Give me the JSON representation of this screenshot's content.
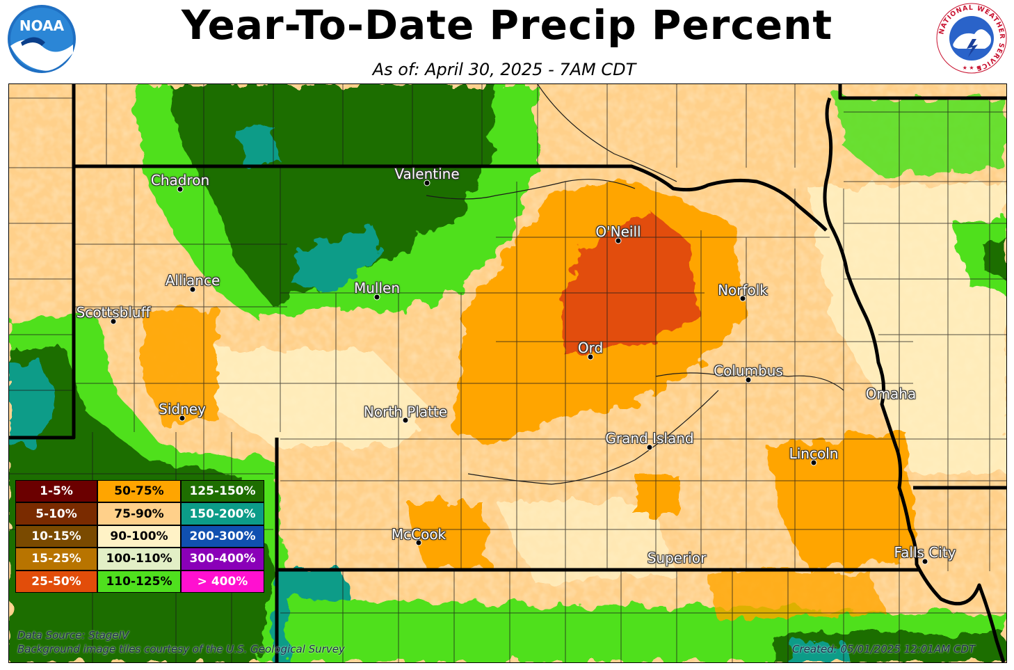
{
  "header": {
    "title": "Year-To-Date Precip Percent",
    "subtitle": "As of: April 30, 2025 - 7AM CDT",
    "noaa_logo_text": "NOAA",
    "nws_logo_text": "NATIONAL WEATHER SERVICE"
  },
  "cities": [
    {
      "name": "Chadron",
      "key": "chadron"
    },
    {
      "name": "Valentine",
      "key": "valentine"
    },
    {
      "name": "O'Neill",
      "key": "oneill"
    },
    {
      "name": "Alliance",
      "key": "alliance"
    },
    {
      "name": "Mullen",
      "key": "mullen"
    },
    {
      "name": "Norfolk",
      "key": "norfolk"
    },
    {
      "name": "Scottsbluff",
      "key": "scottsbluff"
    },
    {
      "name": "Ord",
      "key": "ord"
    },
    {
      "name": "Columbus",
      "key": "columbus"
    },
    {
      "name": "Omaha",
      "key": "omaha"
    },
    {
      "name": "Sidney",
      "key": "sidney"
    },
    {
      "name": "North Platte",
      "key": "north-platte"
    },
    {
      "name": "Grand Island",
      "key": "grand-island"
    },
    {
      "name": "Lincoln",
      "key": "lincoln"
    },
    {
      "name": "McCook",
      "key": "mccook"
    },
    {
      "name": "Superior",
      "key": "superior"
    },
    {
      "name": "Falls City",
      "key": "falls-city"
    }
  ],
  "legend": [
    {
      "label": "1-5%",
      "color": "#6b0000",
      "text_color": "#ffffff"
    },
    {
      "label": "50-75%",
      "color": "#ffa500",
      "text_color": "#000000"
    },
    {
      "label": "125-150%",
      "color": "#1e6e00",
      "text_color": "#ffffff"
    },
    {
      "label": "5-10%",
      "color": "#7a2b00",
      "text_color": "#ffffff"
    },
    {
      "label": "75-90%",
      "color": "#ffd08a",
      "text_color": "#000000"
    },
    {
      "label": "150-200%",
      "color": "#0c9c88",
      "text_color": "#ffffff"
    },
    {
      "label": "10-15%",
      "color": "#7a4a00",
      "text_color": "#ffffff"
    },
    {
      "label": "90-100%",
      "color": "#fff2c6",
      "text_color": "#000000"
    },
    {
      "label": "200-300%",
      "color": "#1050b0",
      "text_color": "#ffffff"
    },
    {
      "label": "15-25%",
      "color": "#b87400",
      "text_color": "#ffffff"
    },
    {
      "label": "100-110%",
      "color": "#e2efc6",
      "text_color": "#000000"
    },
    {
      "label": "300-400%",
      "color": "#8a00b8",
      "text_color": "#ffffff"
    },
    {
      "label": "25-50%",
      "color": "#e24d0a",
      "text_color": "#ffffff"
    },
    {
      "label": "110-125%",
      "color": "#4fe01e",
      "text_color": "#000000"
    },
    {
      "label": "> 400%",
      "color": "#ff10d0",
      "text_color": "#ffffff"
    }
  ],
  "footer": {
    "data_source": "Data Source: StageIV",
    "background_credit": "Background image tiles courtesy of the U.S. Geological Survey",
    "created": "Created: 05/01/2025 12:01AM CDT"
  },
  "colors": {
    "moist_green": "#4fe01e",
    "dark_green": "#1e6e00",
    "teal": "#0c9c88",
    "dry_orange": "#ffa500",
    "very_dry": "#e24d0a",
    "tan": "#ffd08a",
    "cream": "#fff2c6"
  }
}
